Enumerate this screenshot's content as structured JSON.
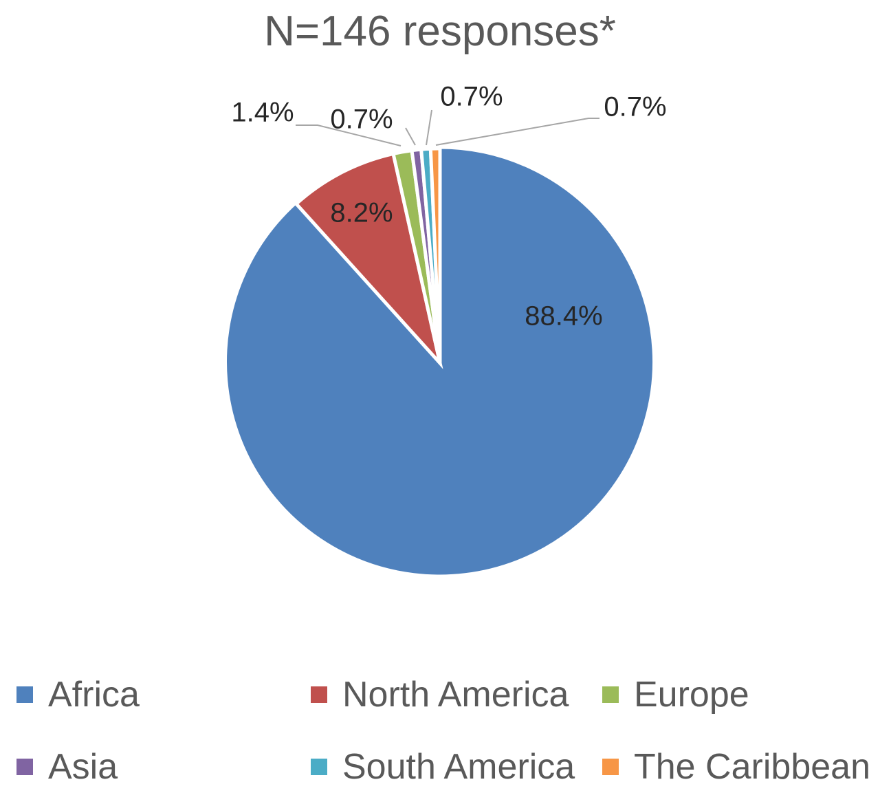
{
  "chart_data": {
    "type": "pie",
    "title": "N=146 responses*",
    "series": [
      {
        "categories": [
          "Africa",
          "North America",
          "Europe",
          "Asia",
          "South America",
          "The Caribbean"
        ],
        "values": [
          88.4,
          8.2,
          1.4,
          0.7,
          0.7,
          0.7
        ],
        "labels": [
          "88.4%",
          "8.2%",
          "1.4%",
          "0.7%",
          "0.7%",
          "0.7%"
        ],
        "colors": [
          "#4f81bd",
          "#c0504d",
          "#9bbb59",
          "#8064a2",
          "#4bacc6",
          "#f79646"
        ]
      }
    ],
    "start_angle_deg": 0,
    "direction": "clockwise",
    "exploded_slice": "Africa",
    "legend_position": "bottom"
  },
  "legend": {
    "items": [
      {
        "label": "Africa",
        "color": "#4f81bd"
      },
      {
        "label": "North America",
        "color": "#c0504d"
      },
      {
        "label": "Europe",
        "color": "#9bbb59"
      },
      {
        "label": "Asia",
        "color": "#8064a2"
      },
      {
        "label": "South America",
        "color": "#4bacc6"
      },
      {
        "label": "The Caribbean",
        "color": "#f79646"
      }
    ]
  }
}
